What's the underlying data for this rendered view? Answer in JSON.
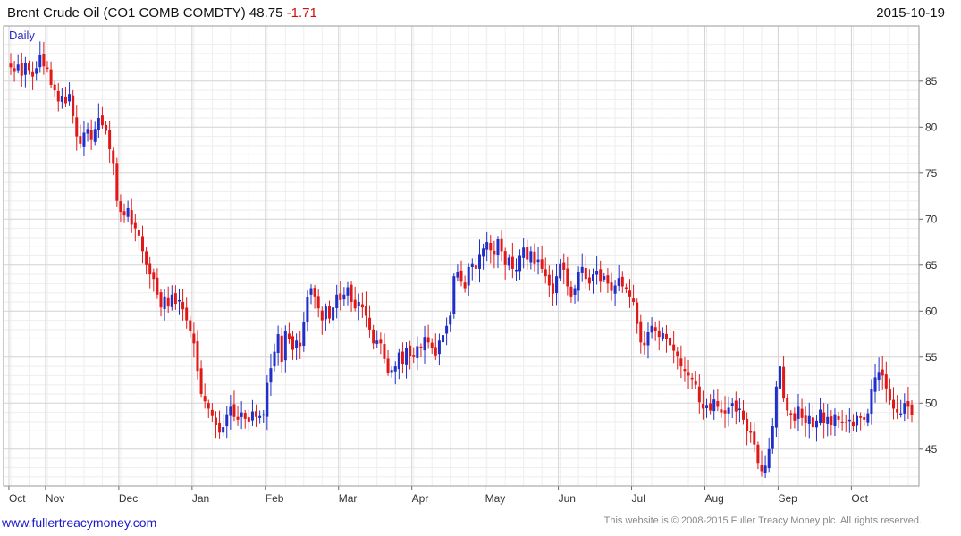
{
  "header": {
    "title": "Brent Crude Oil  (CO1 COMB COMDTY)",
    "last": "48.75",
    "change": "-1.71",
    "date": "2015-10-19"
  },
  "footer": {
    "website": "www.fullertreacymoney.com",
    "copyright": "This website is © 2008-2015 Fuller Treacy Money plc. All rights reserved."
  },
  "colors": {
    "up": "#1f2fc8",
    "down": "#e01818",
    "grid": "#d4d4d4",
    "frame": "#999999",
    "period_label": "#2a2ac8"
  },
  "chart_data": {
    "type": "candlestick",
    "period_label": "Daily",
    "xlabel": "",
    "ylabel": "",
    "y_axis_position": "right",
    "grid": true,
    "ylim": [
      41,
      91
    ],
    "yticks": [
      45,
      50,
      55,
      60,
      65,
      70,
      75,
      80,
      85
    ],
    "month_labels": [
      "Oct",
      "Nov",
      "Dec",
      "Jan",
      "Feb",
      "Mar",
      "Apr",
      "May",
      "Jun",
      "Jul",
      "Aug",
      "Sep",
      "Oct"
    ],
    "month_start_index": [
      0,
      10,
      30,
      50,
      70,
      90,
      110,
      130,
      150,
      170,
      190,
      210,
      230
    ],
    "close_series_approx": [
      86.5,
      86.0,
      86.8,
      85.6,
      87.0,
      86.2,
      85.5,
      86.4,
      87.8,
      86.6,
      86.4,
      84.6,
      84.0,
      82.8,
      83.4,
      82.6,
      83.6,
      81.2,
      79.0,
      78.2,
      79.4,
      79.8,
      78.6,
      79.8,
      81.0,
      80.2,
      79.6,
      77.6,
      76.0,
      72.0,
      70.8,
      70.4,
      71.2,
      69.4,
      69.0,
      68.2,
      66.5,
      65.0,
      64.0,
      63.5,
      61.8,
      60.4,
      61.6,
      60.5,
      61.8,
      60.8,
      61.2,
      60.2,
      59.0,
      57.8,
      56.5,
      53.5,
      51.0,
      50.2,
      49.4,
      48.6,
      47.6,
      46.8,
      47.4,
      48.8,
      49.6,
      48.5,
      48.2,
      49.0,
      48.3,
      48.0,
      49.1,
      48.5,
      48.6,
      48.8,
      52.2,
      53.8,
      55.6,
      57.5,
      54.5,
      57.8,
      57.0,
      55.8,
      56.8,
      56.2,
      58.8,
      61.5,
      62.5,
      61.6,
      60.3,
      59.0,
      60.5,
      59.2,
      60.4,
      61.8,
      61.2,
      61.8,
      62.6,
      61.0,
      60.3,
      61.0,
      60.4,
      59.5,
      58.0,
      56.5,
      56.8,
      56.5,
      54.8,
      53.3,
      53.6,
      54.0,
      55.5,
      54.2,
      56.0,
      55.1,
      55.0,
      56.2,
      56.0,
      57.2,
      56.6,
      56.0,
      55.2,
      56.8,
      57.4,
      58.4,
      59.5,
      63.8,
      64.3,
      63.2,
      62.5,
      64.8,
      65.2,
      64.6,
      66.2,
      66.8,
      67.5,
      66.6,
      66.2,
      67.8,
      66.5,
      65.0,
      65.8,
      64.6,
      64.5,
      66.0,
      66.9,
      65.6,
      66.5,
      65.2,
      65.6,
      64.6,
      63.8,
      62.8,
      61.9,
      63.8,
      65.2,
      64.5,
      62.7,
      61.6,
      62.5,
      64.2,
      64.8,
      63.5,
      63.0,
      64.0,
      64.4,
      63.2,
      63.8,
      63.0,
      62.2,
      62.8,
      63.6,
      62.7,
      62.4,
      61.6,
      61.0,
      58.6,
      56.6,
      56.3,
      57.7,
      58.4,
      57.8,
      57.2,
      57.6,
      57.0,
      56.3,
      55.7,
      55.1,
      54.0,
      53.5,
      53.0,
      52.7,
      52.0,
      50.1,
      49.4,
      49.8,
      49.2,
      50.4,
      49.6,
      49.0,
      48.9,
      49.5,
      50.0,
      49.1,
      49.4,
      48.2,
      47.0,
      46.8,
      45.5,
      43.5,
      42.6,
      43.2,
      45.0,
      47.5,
      51.8,
      54.0,
      50.5,
      49.2,
      48.8,
      48.1,
      49.6,
      48.4,
      47.8,
      48.6,
      47.4,
      48.1,
      49.3,
      47.8,
      48.5,
      47.6,
      48.8,
      48.2,
      48.0,
      47.9,
      48.2,
      47.5,
      48.6,
      48.4,
      48.2,
      48.9,
      51.5,
      52.8,
      53.4,
      53.0,
      51.6,
      50.3,
      49.4,
      49.0,
      48.9,
      50.0,
      49.6,
      48.75
    ]
  }
}
